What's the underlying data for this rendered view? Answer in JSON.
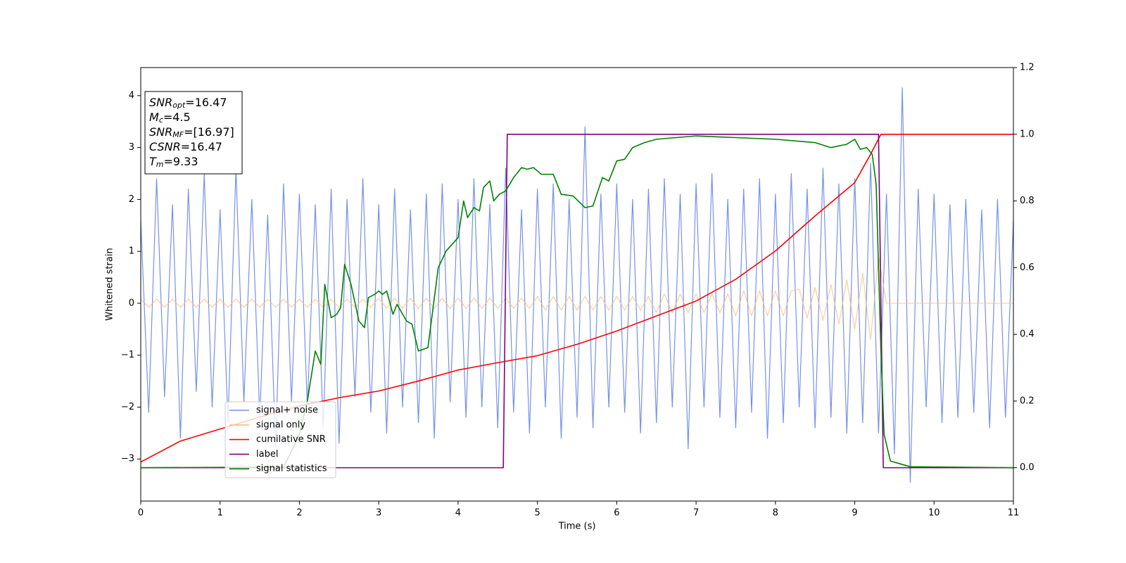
{
  "chart_data": {
    "type": "line",
    "xlabel": "Time (s)",
    "ylabel": "Whitened strain",
    "xlim": [
      0,
      11
    ],
    "xticks": [
      0,
      1,
      2,
      3,
      4,
      5,
      6,
      7,
      8,
      9,
      10,
      11
    ],
    "ylim": [
      -3.81,
      4.54
    ],
    "yticks": [
      {
        "value": -3,
        "label": "−3"
      },
      {
        "value": -2,
        "label": "−2"
      },
      {
        "value": -1,
        "label": "−1"
      },
      0,
      1,
      2,
      3,
      4
    ],
    "y2lim": [
      -0.1,
      1.2
    ],
    "y2ticks": [
      {
        "value": 0,
        "label": "0.0"
      },
      0.2,
      0.4,
      0.6,
      0.8,
      {
        "value": 1,
        "label": "1.0"
      },
      1.2
    ],
    "x": [
      0,
      0.1,
      0.2,
      0.3,
      0.4,
      0.5,
      0.6,
      0.7,
      0.8,
      0.9,
      1,
      1.1,
      1.2,
      1.3,
      1.4,
      1.5,
      1.6,
      1.7,
      1.8,
      1.9,
      2,
      2.1,
      2.2,
      2.3,
      2.4,
      2.5,
      2.6,
      2.7,
      2.8,
      2.9,
      3,
      3.1,
      3.2,
      3.3,
      3.4,
      3.5,
      3.6,
      3.7,
      3.8,
      3.9,
      4,
      4.1,
      4.2,
      4.3,
      4.4,
      4.5,
      4.6,
      4.7,
      4.8,
      4.9,
      5,
      5.1,
      5.2,
      5.3,
      5.4,
      5.5,
      5.6,
      5.7,
      5.8,
      5.9,
      6,
      6.1,
      6.2,
      6.3,
      6.4,
      6.5,
      6.6,
      6.7,
      6.8,
      6.9,
      7,
      7.1,
      7.2,
      7.3,
      7.4,
      7.5,
      7.6,
      7.7,
      7.8,
      7.9,
      8,
      8.1,
      8.2,
      8.3,
      8.4,
      8.5,
      8.6,
      8.7,
      8.8,
      8.9,
      9,
      9.1,
      9.2,
      9.3,
      9.4,
      9.5,
      9.6,
      9.7,
      9.8,
      9.9,
      10,
      10.1,
      10.2,
      10.3,
      10.4,
      10.5,
      10.6,
      10.7,
      10.8,
      10.9,
      11
    ],
    "series": [
      {
        "name": "signal+ noise",
        "color": "#7492e8",
        "values": [
          1.6,
          -2.1,
          2.4,
          -1.8,
          1.9,
          -2.6,
          2.2,
          -1.7,
          2.5,
          -2.0,
          1.8,
          -2.3,
          2.6,
          -1.9,
          2.0,
          -2.2,
          1.7,
          -2.8,
          2.3,
          -1.9,
          2.1,
          -2.0,
          1.9,
          -2.4,
          2.2,
          -2.7,
          2.0,
          -1.8,
          2.4,
          -2.1,
          1.9,
          -2.5,
          2.2,
          -2.0,
          1.8,
          -2.3,
          2.1,
          -2.6,
          2.3,
          -1.9,
          2.0,
          -2.2,
          2.4,
          -2.0,
          1.9,
          -2.4,
          2.6,
          -2.1,
          1.8,
          -2.5,
          2.2,
          -2.0,
          2.3,
          -2.6,
          2.0,
          -2.2,
          3.4,
          -2.4,
          2.1,
          -2.0,
          2.3,
          -2.1,
          2.0,
          -2.5,
          2.2,
          -2.3,
          2.4,
          -2.0,
          2.1,
          -2.8,
          2.3,
          -2.0,
          2.5,
          -2.2,
          2.0,
          -2.4,
          2.2,
          -2.1,
          2.4,
          -2.6,
          2.1,
          -2.3,
          2.5,
          -2.0,
          2.2,
          -2.4,
          2.6,
          -2.2,
          2.3,
          -2.5,
          2.4,
          -2.3,
          2.7,
          -2.5,
          2.1,
          -2.9,
          4.15,
          -3.45,
          2.2,
          -2.0,
          2.1,
          -2.3,
          1.9,
          -2.2,
          2.0,
          -2.1,
          1.8,
          -2.4,
          2.0,
          -2.2,
          1.6
        ]
      },
      {
        "name": "signal only",
        "color": "#ffbb78",
        "values": [
          0.08,
          -0.08,
          0.08,
          -0.08,
          0.08,
          -0.08,
          0.08,
          -0.08,
          0.08,
          -0.08,
          0.08,
          -0.08,
          0.08,
          -0.08,
          0.08,
          -0.08,
          0.08,
          -0.08,
          0.08,
          -0.08,
          0.08,
          -0.08,
          0.08,
          -0.08,
          0.08,
          -0.08,
          0.08,
          -0.08,
          0.08,
          -0.08,
          0.1,
          -0.1,
          0.1,
          -0.1,
          0.1,
          -0.1,
          0.1,
          -0.1,
          0.1,
          -0.1,
          0.1,
          -0.1,
          0.1,
          -0.1,
          0.1,
          -0.1,
          0.1,
          -0.1,
          0.1,
          -0.1,
          0.13,
          -0.13,
          0.13,
          -0.13,
          0.13,
          -0.13,
          0.13,
          -0.13,
          0.13,
          -0.13,
          0.13,
          -0.13,
          0.13,
          -0.13,
          0.13,
          -0.18,
          0.18,
          -0.18,
          0.18,
          -0.18,
          0.18,
          -0.18,
          0.18,
          -0.18,
          0.18,
          -0.24,
          0.24,
          -0.24,
          0.24,
          -0.24,
          0.24,
          -0.24,
          0.24,
          0.27,
          -0.28,
          0.3,
          -0.33,
          0.36,
          -0.4,
          0.45,
          -0.5,
          0.58,
          -0.7,
          0.9,
          0,
          0,
          0,
          0,
          0,
          0,
          0,
          0,
          0,
          0,
          0,
          0,
          0,
          0,
          0,
          0,
          0
        ]
      },
      {
        "name": "cumilative SNR",
        "color": "#ff0000",
        "axis": "y2",
        "x": [
          0,
          0.5,
          1,
          1.5,
          2,
          2.5,
          3,
          3.5,
          4,
          4.5,
          5,
          5.5,
          6,
          6.5,
          7,
          7.5,
          8,
          8.5,
          9,
          9.2,
          9.33,
          11
        ],
        "values": [
          0.017,
          0.08,
          0.116,
          0.152,
          0.185,
          0.21,
          0.23,
          0.26,
          0.293,
          0.315,
          0.336,
          0.37,
          0.41,
          0.455,
          0.5,
          0.565,
          0.65,
          0.755,
          0.855,
          0.94,
          1.0,
          1.0
        ]
      },
      {
        "name": "label",
        "color": "#800080",
        "axis": "y2",
        "x": [
          0,
          4.57,
          4.62,
          9.3,
          9.36,
          11
        ],
        "values": [
          0,
          0,
          1,
          1,
          0,
          0
        ]
      },
      {
        "name": "signal statistics",
        "color": "#008000",
        "axis": "y2",
        "x": [
          0,
          1.8,
          1.9,
          2.0,
          2.1,
          2.2,
          2.27,
          2.32,
          2.4,
          2.47,
          2.52,
          2.57,
          2.65,
          2.75,
          2.82,
          2.87,
          2.95,
          3.0,
          3.05,
          3.1,
          3.18,
          3.23,
          3.35,
          3.42,
          3.5,
          3.62,
          3.75,
          3.85,
          4.0,
          4.07,
          4.12,
          4.2,
          4.27,
          4.32,
          4.4,
          4.45,
          4.52,
          4.6,
          4.7,
          4.8,
          4.87,
          4.95,
          5.05,
          5.2,
          5.3,
          5.45,
          5.6,
          5.7,
          5.82,
          5.9,
          6.0,
          6.1,
          6.2,
          6.35,
          6.5,
          7.0,
          7.5,
          8.0,
          8.5,
          8.7,
          8.9,
          9.0,
          9.07,
          9.15,
          9.22,
          9.27,
          9.33,
          9.37,
          9.45,
          9.7,
          11
        ],
        "values": [
          0,
          0.002,
          0.05,
          0.1,
          0.2,
          0.35,
          0.31,
          0.55,
          0.45,
          0.46,
          0.48,
          0.61,
          0.55,
          0.44,
          0.42,
          0.51,
          0.52,
          0.53,
          0.52,
          0.53,
          0.46,
          0.49,
          0.44,
          0.43,
          0.35,
          0.36,
          0.6,
          0.65,
          0.69,
          0.8,
          0.75,
          0.78,
          0.77,
          0.84,
          0.86,
          0.8,
          0.82,
          0.83,
          0.87,
          0.9,
          0.895,
          0.9,
          0.88,
          0.88,
          0.82,
          0.815,
          0.78,
          0.785,
          0.87,
          0.86,
          0.92,
          0.925,
          0.96,
          0.975,
          0.985,
          0.995,
          0.99,
          0.985,
          0.975,
          0.96,
          0.97,
          0.985,
          0.955,
          0.96,
          0.94,
          0.85,
          0.35,
          0.1,
          0.02,
          0.003,
          0
        ]
      }
    ],
    "annotations": [
      {
        "symbol": "SNR",
        "subscript": "opt",
        "text": "=16.47"
      },
      {
        "symbol": "M",
        "subscript": "c",
        "text": "=4.5"
      },
      {
        "symbol": "SNR",
        "subscript": "MF",
        "text": "=[16.97]"
      },
      {
        "symbol": "CSNR",
        "text": "=16.47"
      },
      {
        "symbol": "T",
        "subscript": "m",
        "text": "=9.33"
      }
    ]
  }
}
